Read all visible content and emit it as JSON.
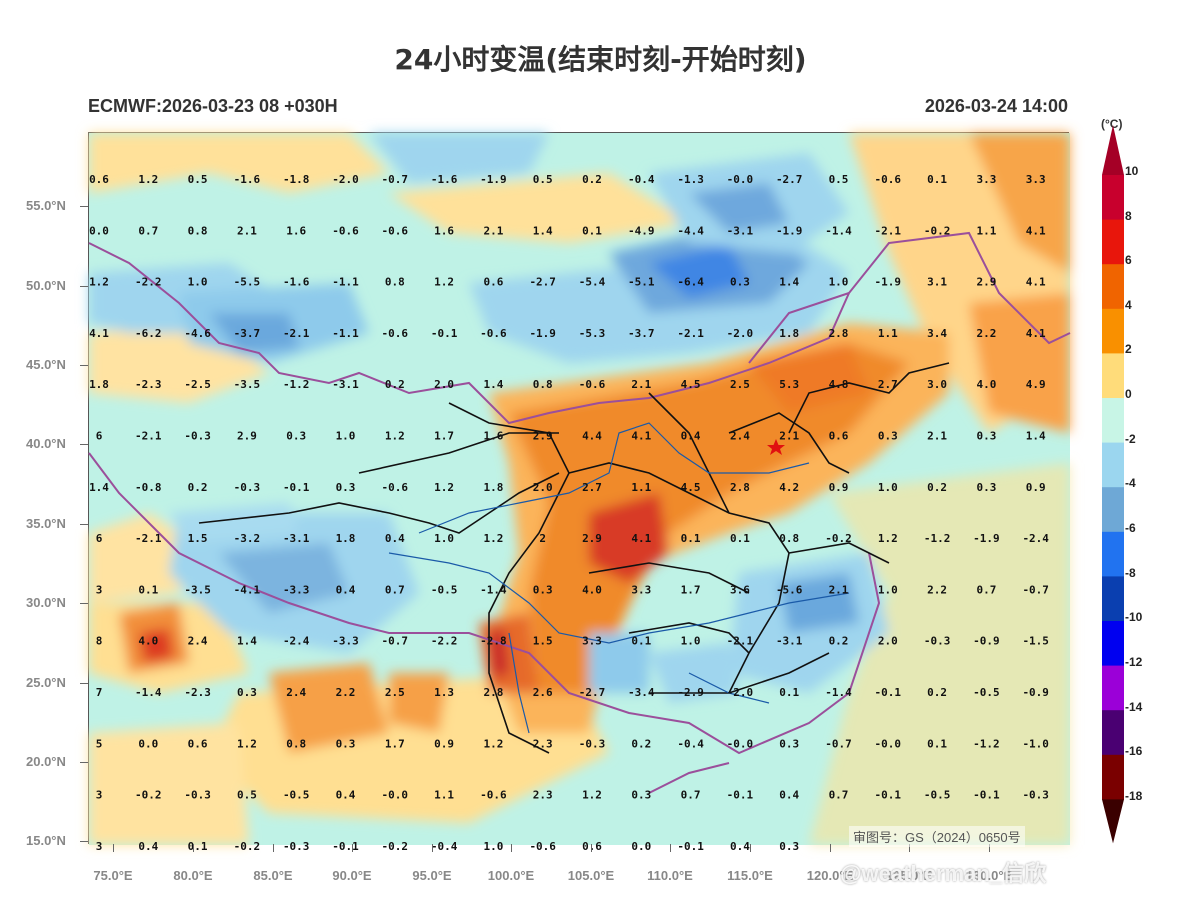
{
  "title": "24小时变温(结束时刻-开始时刻)",
  "model_run": "ECMWF:2026-03-23 08 +030H",
  "valid_time": "2026-03-24 14:00",
  "unit": "(°C)",
  "review_number": "审图号：GS（2024）0650号",
  "watermark": "@weatherman_信欣",
  "y_axis_labels": [
    "55.0°N",
    "50.0°N",
    "45.0°N",
    "40.0°N",
    "35.0°N",
    "30.0°N",
    "25.0°N",
    "20.0°N",
    "15.0°N"
  ],
  "x_axis_labels": [
    "75.0°E",
    "80.0°E",
    "85.0°E",
    "90.0°E",
    "95.0°E",
    "100.0°E",
    "105.0°E",
    "110.0°E",
    "115.0°E",
    "120.0°E",
    "125.0°E",
    "130.0°E"
  ],
  "colorbar": {
    "labels": [
      "10",
      "8",
      "6",
      "4",
      "2",
      "0",
      "-2",
      "-4",
      "-6",
      "-8",
      "-10",
      "-12",
      "-14",
      "-16",
      "-18"
    ],
    "colors": [
      "#a50026",
      "#c8002d",
      "#e8160c",
      "#f06400",
      "#f99000",
      "#ffdc7a",
      "#c8f5e6",
      "#9bd6ef",
      "#6ea8d6",
      "#2173f0",
      "#0a3fb0",
      "#0000f0",
      "#9b00d8",
      "#4a0072",
      "#7a0000",
      "#3a0000"
    ]
  },
  "marker": {
    "name": "Beijing star",
    "color": "#e01010"
  },
  "grid_values": [
    [
      "0.6",
      "1.2",
      "0.5",
      "-1.6",
      "-1.8",
      "-2.0",
      "-0.7",
      "-1.6",
      "-1.9",
      "0.5",
      "0.2",
      "-0.4",
      "-1.3",
      "-0.0",
      "-2.7",
      "0.5",
      "-0.6",
      "0.1",
      "3.3",
      "3.3"
    ],
    [
      "0.0",
      "0.7",
      "0.8",
      "2.1",
      "1.6",
      "-0.6",
      "-0.6",
      "1.6",
      "2.1",
      "1.4",
      "0.1",
      "-4.9",
      "-4.4",
      "-3.1",
      "-1.9",
      "-1.4",
      "-2.1",
      "-0.2",
      "1.1",
      "4.1"
    ],
    [
      "1.2",
      "-2.2",
      "1.0",
      "-5.5",
      "-1.6",
      "-1.1",
      "0.8",
      "1.2",
      "0.6",
      "-2.7",
      "-5.4",
      "-5.1",
      "-6.4",
      "0.3",
      "1.4",
      "1.0",
      "-1.9",
      "3.1",
      "2.9",
      "4.1"
    ],
    [
      "4.1",
      "-6.2",
      "-4.6",
      "-3.7",
      "-2.1",
      "-1.1",
      "-0.6",
      "-0.1",
      "-0.6",
      "-1.9",
      "-5.3",
      "-3.7",
      "-2.1",
      "-2.0",
      "1.8",
      "2.8",
      "1.1",
      "3.4",
      "2.2",
      "4.1"
    ],
    [
      "1.8",
      "-2.3",
      "-2.5",
      "-3.5",
      "-1.2",
      "-3.1",
      "0.2",
      "2.0",
      "1.4",
      "0.8",
      "-0.6",
      "2.1",
      "4.5",
      "2.5",
      "5.3",
      "4.8",
      "2.7",
      "3.0",
      "4.0",
      "4.9"
    ],
    [
      "6",
      "-2.1",
      "-0.3",
      "2.9",
      "0.3",
      "1.0",
      "1.2",
      "1.7",
      "1.6",
      "2.9",
      "4.4",
      "4.1",
      "0.4",
      "2.4",
      "2.1",
      "0.6",
      "0.3",
      "2.1",
      "0.3",
      "1.4"
    ],
    [
      "1.4",
      "-0.8",
      "0.2",
      "-0.3",
      "-0.1",
      "0.3",
      "-0.6",
      "1.2",
      "1.8",
      "2.0",
      "2.7",
      "1.1",
      "4.5",
      "2.8",
      "4.2",
      "0.9",
      "1.0",
      "0.2",
      "0.3",
      "0.9"
    ],
    [
      "6",
      "-2.1",
      "1.5",
      "-3.2",
      "-3.1",
      "1.8",
      "0.4",
      "1.0",
      "1.2",
      "2",
      "2.9",
      "4.1",
      "0.1",
      "0.1",
      "0.8",
      "-0.2",
      "1.2",
      "-1.2",
      "-1.9",
      "-2.4"
    ],
    [
      "3",
      "0.1",
      "-3.5",
      "-4.1",
      "-3.3",
      "0.4",
      "0.7",
      "-0.5",
      "-1.4",
      "0.3",
      "4.0",
      "3.3",
      "1.7",
      "3.6",
      "-5.6",
      "2.1",
      "1.0",
      "2.2",
      "0.7",
      "-0.7"
    ],
    [
      "8",
      "4.0",
      "2.4",
      "1.4",
      "-2.4",
      "-3.3",
      "-0.7",
      "-2.2",
      "-2.8",
      "1.5",
      "3.3",
      "0.1",
      "1.0",
      "-2.1",
      "-3.1",
      "0.2",
      "2.0",
      "-0.3",
      "-0.9",
      "-1.5"
    ],
    [
      "7",
      "-1.4",
      "-2.3",
      "0.3",
      "2.4",
      "2.2",
      "2.5",
      "1.3",
      "2.8",
      "2.6",
      "-2.7",
      "-3.4",
      "-2.9",
      "-2.0",
      "0.1",
      "-1.4",
      "-0.1",
      "0.2",
      "-0.5",
      "-0.9"
    ],
    [
      "5",
      "0.0",
      "0.6",
      "1.2",
      "0.8",
      "0.3",
      "1.7",
      "0.9",
      "1.2",
      "2.3",
      "-0.3",
      "0.2",
      "-0.4",
      "-0.0",
      "0.3",
      "-0.7",
      "-0.0",
      "0.1",
      "-1.2",
      "-1.0"
    ],
    [
      "3",
      "-0.2",
      "-0.3",
      "0.5",
      "-0.5",
      "0.4",
      "-0.0",
      "1.1",
      "-0.6",
      "2.3",
      "1.2",
      "0.3",
      "0.7",
      "-0.1",
      "0.4",
      "0.7",
      "-0.1",
      "-0.5",
      "-0.1",
      "-0.3"
    ],
    [
      "3",
      "0.4",
      "0.1",
      "-0.2",
      "-0.3",
      "-0.1",
      "-0.2",
      "-0.4",
      "1.0",
      "-0.6",
      "0.6",
      "0.0",
      "-0.1",
      "0.4",
      "0.3",
      "",
      "",
      "",
      "",
      ""
    ]
  ]
}
